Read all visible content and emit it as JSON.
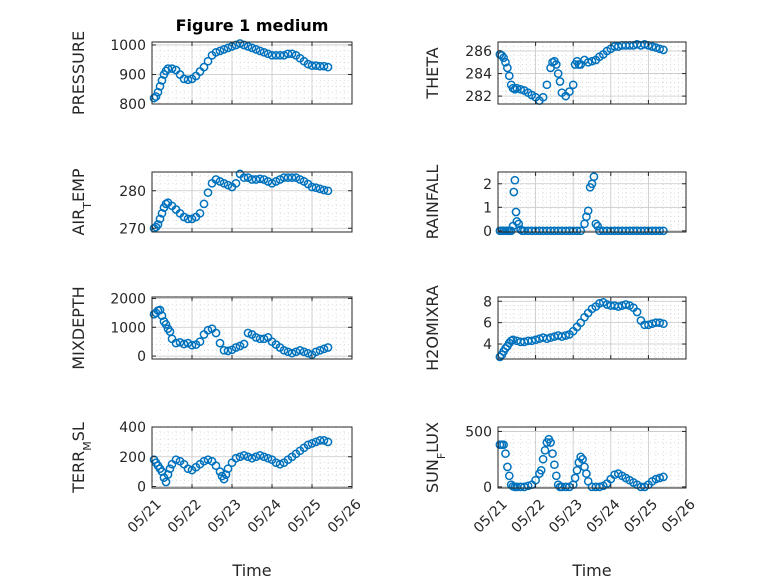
{
  "figure_title": "Figure 1 medium",
  "colors": {
    "marker": "#0072BD",
    "axis": "#262626",
    "grid": "#c8c8c8"
  },
  "chart_data": [
    {
      "type": "scatter",
      "title": "Figure 1 medium",
      "ylabel": "PRESSURE",
      "ylim": [
        800,
        1010
      ],
      "yticks": [
        800,
        900,
        1000
      ],
      "xlabel": "",
      "xlim": [
        "05/21",
        "05/26"
      ],
      "xticks": [
        "05/21",
        "05/22",
        "05/23",
        "05/24",
        "05/25",
        "05/26"
      ],
      "grid": true,
      "marker": "open-circle",
      "x": [
        0.05,
        0.1,
        0.15,
        0.2,
        0.25,
        0.3,
        0.35,
        0.4,
        0.5,
        0.6,
        0.7,
        0.8,
        0.9,
        1.0,
        1.1,
        1.2,
        1.3,
        1.4,
        1.5,
        1.6,
        1.7,
        1.8,
        1.9,
        2.0,
        2.1,
        2.2,
        2.3,
        2.4,
        2.5,
        2.6,
        2.7,
        2.8,
        2.9,
        3.0,
        3.1,
        3.2,
        3.3,
        3.4,
        3.5,
        3.6,
        3.7,
        3.8,
        3.9,
        4.0,
        4.1,
        4.2,
        4.3,
        4.4
      ],
      "y": [
        820,
        825,
        840,
        860,
        880,
        900,
        912,
        920,
        920,
        915,
        900,
        885,
        882,
        885,
        895,
        910,
        925,
        945,
        965,
        975,
        980,
        985,
        990,
        995,
        1000,
        1005,
        1000,
        995,
        990,
        985,
        980,
        975,
        970,
        965,
        965,
        965,
        965,
        970,
        970,
        965,
        955,
        945,
        935,
        930,
        930,
        928,
        928,
        925
      ]
    },
    {
      "type": "scatter",
      "title": "",
      "ylabel": "THETA",
      "ylim": [
        281.3,
        286.8
      ],
      "yticks": [
        282,
        284,
        286
      ],
      "xlabel": "",
      "xlim": [
        "05/21",
        "05/26"
      ],
      "xticks": [
        "05/21",
        "05/22",
        "05/23",
        "05/24",
        "05/25",
        "05/26"
      ],
      "grid": true,
      "marker": "open-circle",
      "x": [
        0.05,
        0.1,
        0.15,
        0.2,
        0.25,
        0.3,
        0.35,
        0.4,
        0.45,
        0.5,
        0.6,
        0.7,
        0.8,
        0.9,
        1.0,
        1.1,
        1.2,
        1.3,
        1.4,
        1.45,
        1.5,
        1.55,
        1.6,
        1.65,
        1.7,
        1.8,
        1.9,
        2.0,
        2.05,
        2.1,
        2.15,
        2.2,
        2.3,
        2.4,
        2.5,
        2.6,
        2.7,
        2.8,
        2.9,
        3.0,
        3.1,
        3.2,
        3.3,
        3.4,
        3.5,
        3.6,
        3.7,
        3.8,
        3.9,
        4.0,
        4.1,
        4.2,
        4.3,
        4.4
      ],
      "y": [
        285.7,
        285.6,
        285.4,
        285.0,
        284.5,
        283.8,
        283.0,
        282.7,
        282.6,
        282.7,
        282.6,
        282.5,
        282.3,
        282.1,
        281.9,
        281.6,
        281.9,
        283.0,
        284.5,
        285.0,
        285.1,
        284.8,
        284.0,
        283.3,
        282.3,
        282.0,
        282.4,
        283.0,
        284.8,
        285.1,
        284.8,
        284.8,
        285.2,
        285.0,
        285.1,
        285.2,
        285.5,
        285.7,
        286.0,
        286.2,
        286.4,
        286.4,
        286.5,
        286.5,
        286.5,
        286.5,
        286.6,
        286.5,
        286.6,
        286.5,
        286.4,
        286.3,
        286.2,
        286.1
      ]
    },
    {
      "type": "scatter",
      "title": "",
      "ylabel": "AIR_TEMP",
      "ylim": [
        269,
        285
      ],
      "yticks": [
        270,
        280
      ],
      "xlabel": "",
      "xlim": [
        "05/21",
        "05/26"
      ],
      "xticks": [
        "05/21",
        "05/22",
        "05/23",
        "05/24",
        "05/25",
        "05/26"
      ],
      "grid": true,
      "marker": "open-circle",
      "x": [
        0.05,
        0.1,
        0.15,
        0.2,
        0.25,
        0.3,
        0.35,
        0.4,
        0.5,
        0.6,
        0.7,
        0.8,
        0.9,
        1.0,
        1.1,
        1.2,
        1.3,
        1.4,
        1.5,
        1.6,
        1.7,
        1.8,
        1.9,
        2.0,
        2.1,
        2.2,
        2.3,
        2.4,
        2.5,
        2.6,
        2.7,
        2.8,
        2.9,
        3.0,
        3.1,
        3.2,
        3.3,
        3.4,
        3.5,
        3.6,
        3.7,
        3.8,
        3.9,
        4.0,
        4.1,
        4.2,
        4.3,
        4.4
      ],
      "y": [
        270,
        270.3,
        271,
        272.5,
        274,
        275.5,
        276.5,
        276.8,
        276,
        275,
        274,
        273,
        272.5,
        272.5,
        273,
        274,
        276.5,
        279.5,
        282,
        283,
        282.5,
        282,
        281.5,
        281,
        282,
        284.5,
        283.5,
        283.5,
        283,
        283,
        283.2,
        283,
        282.5,
        282,
        282.5,
        283,
        283.5,
        283.5,
        283.5,
        283.5,
        283,
        282.5,
        281.8,
        281,
        280.8,
        280.5,
        280.2,
        280
      ]
    },
    {
      "type": "scatter",
      "title": "",
      "ylabel": "RAINFALL",
      "ylim": [
        -0.05,
        2.5
      ],
      "yticks": [
        0,
        1,
        2
      ],
      "xlabel": "",
      "xlim": [
        "05/21",
        "05/26"
      ],
      "xticks": [
        "05/21",
        "05/22",
        "05/23",
        "05/24",
        "05/25",
        "05/26"
      ],
      "grid": true,
      "marker": "open-circle",
      "x": [
        0.05,
        0.1,
        0.15,
        0.2,
        0.25,
        0.3,
        0.35,
        0.4,
        0.42,
        0.45,
        0.48,
        0.5,
        0.55,
        0.6,
        0.65,
        0.7,
        0.8,
        0.9,
        1.0,
        1.1,
        1.2,
        1.3,
        1.4,
        1.5,
        1.6,
        1.7,
        1.8,
        1.9,
        2.0,
        2.1,
        2.2,
        2.3,
        2.35,
        2.4,
        2.45,
        2.5,
        2.55,
        2.6,
        2.65,
        2.7,
        2.8,
        2.9,
        3.0,
        3.1,
        3.2,
        3.3,
        3.4,
        3.5,
        3.6,
        3.7,
        3.8,
        3.9,
        4.0,
        4.1,
        4.2,
        4.3,
        4.4
      ],
      "y": [
        0,
        0,
        0,
        0,
        0,
        0,
        0,
        0.2,
        1.65,
        2.15,
        0.8,
        0.4,
        0.3,
        0.05,
        0,
        0,
        0,
        0,
        0,
        0,
        0,
        0,
        0,
        0,
        0,
        0,
        0,
        0,
        0,
        0,
        0,
        0.3,
        0.6,
        0.85,
        1.85,
        2.0,
        2.3,
        0.3,
        0.2,
        0,
        0,
        0,
        0,
        0,
        0,
        0,
        0,
        0,
        0,
        0,
        0,
        0,
        0,
        0,
        0,
        0,
        0
      ]
    },
    {
      "type": "scatter",
      "title": "",
      "ylabel": "MIXDEPTH",
      "ylim": [
        -100,
        2050
      ],
      "yticks": [
        0,
        1000,
        2000
      ],
      "xlabel": "",
      "xlim": [
        "05/21",
        "05/26"
      ],
      "xticks": [
        "05/21",
        "05/22",
        "05/23",
        "05/24",
        "05/25",
        "05/26"
      ],
      "grid": true,
      "marker": "open-circle",
      "x": [
        0.05,
        0.1,
        0.15,
        0.2,
        0.25,
        0.3,
        0.35,
        0.4,
        0.45,
        0.5,
        0.6,
        0.7,
        0.8,
        0.9,
        1.0,
        1.1,
        1.2,
        1.3,
        1.4,
        1.5,
        1.6,
        1.7,
        1.8,
        1.9,
        2.0,
        2.1,
        2.2,
        2.3,
        2.4,
        2.5,
        2.6,
        2.7,
        2.8,
        2.9,
        3.0,
        3.1,
        3.2,
        3.3,
        3.4,
        3.5,
        3.6,
        3.7,
        3.8,
        3.9,
        4.0,
        4.1,
        4.2,
        4.3,
        4.4
      ],
      "y": [
        1450,
        1500,
        1580,
        1600,
        1400,
        1200,
        1100,
        950,
        850,
        600,
        450,
        480,
        420,
        450,
        380,
        400,
        500,
        750,
        900,
        950,
        800,
        450,
        200,
        180,
        220,
        300,
        350,
        420,
        800,
        750,
        650,
        600,
        600,
        650,
        500,
        400,
        300,
        200,
        150,
        100,
        150,
        200,
        150,
        100,
        50,
        150,
        200,
        250,
        300
      ]
    },
    {
      "type": "scatter",
      "title": "",
      "ylabel": "H2OMIXRA",
      "ylim": [
        2.6,
        8.4
      ],
      "yticks": [
        4,
        6,
        8
      ],
      "xlabel": "",
      "xlim": [
        "05/21",
        "05/26"
      ],
      "xticks": [
        "05/21",
        "05/22",
        "05/23",
        "05/24",
        "05/25",
        "05/26"
      ],
      "grid": true,
      "marker": "open-circle",
      "x": [
        0.05,
        0.1,
        0.15,
        0.2,
        0.25,
        0.3,
        0.35,
        0.4,
        0.5,
        0.6,
        0.7,
        0.8,
        0.9,
        1.0,
        1.1,
        1.2,
        1.3,
        1.4,
        1.5,
        1.6,
        1.7,
        1.8,
        1.9,
        2.0,
        2.1,
        2.2,
        2.3,
        2.4,
        2.5,
        2.6,
        2.7,
        2.8,
        2.9,
        3.0,
        3.1,
        3.2,
        3.3,
        3.4,
        3.5,
        3.6,
        3.7,
        3.8,
        3.9,
        4.0,
        4.1,
        4.2,
        4.3,
        4.4
      ],
      "y": [
        2.8,
        3.0,
        3.3,
        3.6,
        3.8,
        4.1,
        4.3,
        4.4,
        4.3,
        4.2,
        4.2,
        4.3,
        4.3,
        4.4,
        4.5,
        4.6,
        4.5,
        4.6,
        4.7,
        4.8,
        4.7,
        4.8,
        4.9,
        5.2,
        5.6,
        6.0,
        6.5,
        6.9,
        7.3,
        7.5,
        7.8,
        7.9,
        7.7,
        7.6,
        7.6,
        7.5,
        7.6,
        7.7,
        7.6,
        7.4,
        7.0,
        6.2,
        5.8,
        5.8,
        5.9,
        6.0,
        6.0,
        5.9
      ]
    },
    {
      "type": "scatter",
      "title": "",
      "ylabel": "TERR_MSL",
      "ylim": [
        -10,
        400
      ],
      "yticks": [
        0,
        200,
        400
      ],
      "xlabel": "Time",
      "xlim": [
        "05/21",
        "05/26"
      ],
      "xticks": [
        "05/21",
        "05/22",
        "05/23",
        "05/24",
        "05/25",
        "05/26"
      ],
      "grid": true,
      "marker": "open-circle",
      "x": [
        0.05,
        0.1,
        0.15,
        0.2,
        0.25,
        0.3,
        0.35,
        0.4,
        0.45,
        0.5,
        0.6,
        0.7,
        0.8,
        0.9,
        1.0,
        1.1,
        1.2,
        1.3,
        1.4,
        1.5,
        1.6,
        1.7,
        1.75,
        1.8,
        1.85,
        1.9,
        2.0,
        2.1,
        2.2,
        2.3,
        2.4,
        2.5,
        2.6,
        2.7,
        2.8,
        2.9,
        3.0,
        3.1,
        3.2,
        3.3,
        3.4,
        3.5,
        3.6,
        3.7,
        3.8,
        3.9,
        4.0,
        4.1,
        4.2,
        4.3,
        4.4
      ],
      "y": [
        180,
        160,
        140,
        120,
        100,
        60,
        30,
        80,
        120,
        150,
        180,
        170,
        150,
        120,
        110,
        130,
        150,
        170,
        180,
        170,
        140,
        100,
        70,
        50,
        80,
        120,
        160,
        190,
        200,
        210,
        200,
        190,
        200,
        210,
        200,
        190,
        180,
        160,
        150,
        160,
        180,
        200,
        220,
        240,
        260,
        280,
        290,
        300,
        310,
        310,
        300
      ]
    },
    {
      "type": "scatter",
      "title": "",
      "ylabel": "SUN_FLUX",
      "ylim": [
        -10,
        540
      ],
      "yticks": [
        0,
        500
      ],
      "xlabel": "Time",
      "xlim": [
        "05/21",
        "05/26"
      ],
      "xticks": [
        "05/21",
        "05/22",
        "05/23",
        "05/24",
        "05/25",
        "05/26"
      ],
      "grid": true,
      "marker": "open-circle",
      "x": [
        0.05,
        0.1,
        0.15,
        0.2,
        0.25,
        0.3,
        0.35,
        0.4,
        0.45,
        0.5,
        0.6,
        0.7,
        0.8,
        0.9,
        1.0,
        1.1,
        1.15,
        1.2,
        1.25,
        1.3,
        1.35,
        1.4,
        1.45,
        1.5,
        1.55,
        1.6,
        1.65,
        1.7,
        1.8,
        1.9,
        2.0,
        2.05,
        2.1,
        2.15,
        2.2,
        2.25,
        2.3,
        2.35,
        2.4,
        2.5,
        2.6,
        2.7,
        2.8,
        2.9,
        3.0,
        3.1,
        3.2,
        3.3,
        3.4,
        3.5,
        3.6,
        3.7,
        3.8,
        3.9,
        4.0,
        4.1,
        4.2,
        4.3,
        4.4
      ],
      "y": [
        380,
        380,
        380,
        300,
        180,
        100,
        20,
        5,
        0,
        0,
        0,
        0,
        10,
        20,
        60,
        120,
        150,
        250,
        330,
        400,
        430,
        400,
        300,
        200,
        100,
        20,
        0,
        0,
        0,
        0,
        20,
        80,
        150,
        220,
        270,
        250,
        180,
        120,
        50,
        0,
        0,
        0,
        10,
        30,
        70,
        110,
        120,
        100,
        80,
        60,
        40,
        20,
        0,
        0,
        20,
        50,
        70,
        80,
        90
      ]
    }
  ]
}
